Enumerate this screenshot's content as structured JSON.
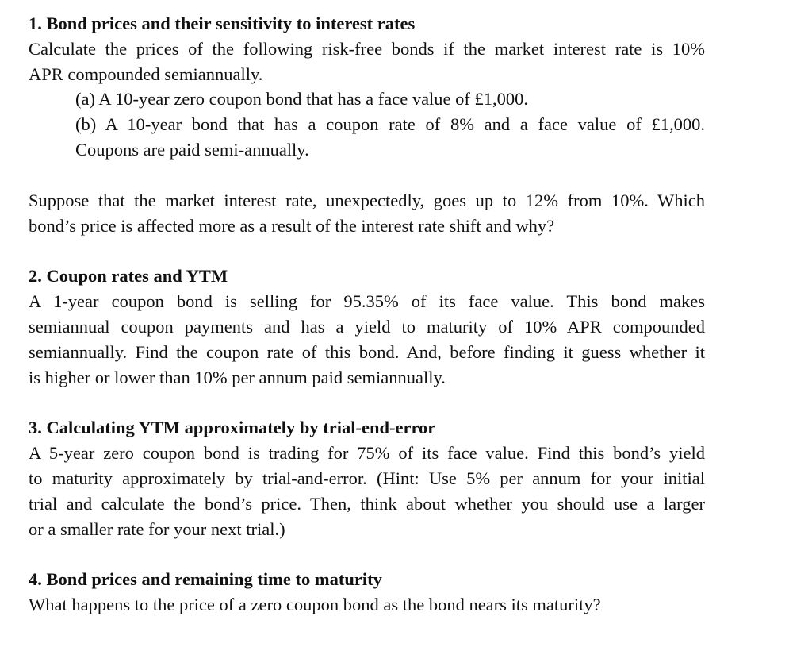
{
  "sections": [
    {
      "heading": "1. Bond prices and their sensitivity to interest rates",
      "intro": [
        "Calculate the prices of the following risk-free bonds if the market interest rate is 10%",
        "APR compounded semiannually."
      ],
      "item_a": "(a) A 10-year zero coupon bond that has a face value of £1,000.",
      "item_b": [
        "(b) A 10-year bond that has a coupon rate of 8% and a face value of £1,000.",
        "Coupons are paid semi-annually."
      ],
      "followup": [
        "Suppose that the market interest rate, unexpectedly, goes up to 12% from 10%. Which",
        "bond’s price is affected more as a result of the interest rate shift and why?"
      ]
    },
    {
      "heading": "2. Coupon rates and YTM",
      "body": [
        "A 1-year coupon bond is selling for 95.35% of its face value. This bond makes",
        "semiannual coupon payments and has a yield to maturity of 10% APR compounded",
        "semiannually. Find the coupon rate of this bond. And, before finding it guess whether it",
        "is higher or lower than 10% per annum paid semiannually."
      ]
    },
    {
      "heading": "3. Calculating YTM approximately by trial-end-error",
      "body": [
        "A 5-year zero coupon bond is trading for 75% of its face value. Find this bond’s yield",
        "to maturity approximately by trial-and-error. (Hint: Use 5% per annum for your initial",
        "trial and calculate the bond’s price. Then, think about whether you should use a larger",
        "or a smaller rate for your next trial.)"
      ]
    },
    {
      "heading": "4. Bond prices and remaining time to maturity",
      "body": [
        "What happens to the price of a zero coupon bond as the bond nears its maturity?"
      ]
    }
  ]
}
